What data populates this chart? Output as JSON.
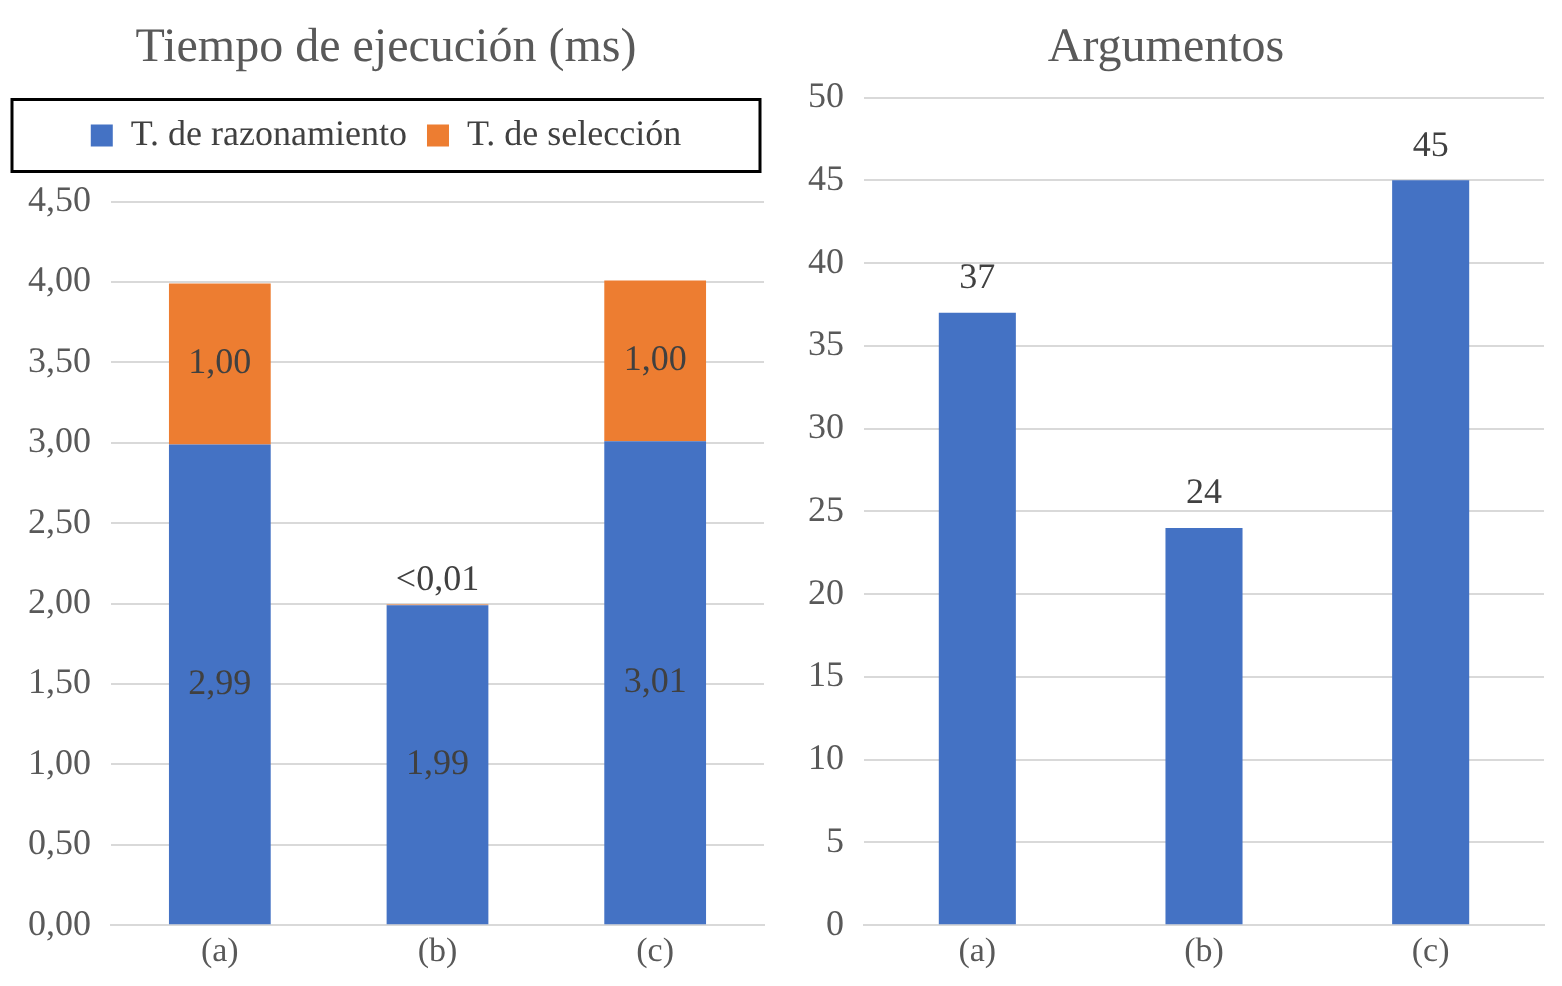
{
  "chart_data": [
    {
      "type": "bar",
      "title": "Tiempo de ejecución (ms)",
      "categories": [
        "(a)",
        "(b)",
        "(c)"
      ],
      "stacked": true,
      "legend": "top",
      "grid": "y",
      "ylim": [
        0,
        4.5
      ],
      "yticks": [
        {
          "value": 0,
          "label": "0,00"
        },
        {
          "value": 0.5,
          "label": "0,50"
        },
        {
          "value": 1,
          "label": "1,00"
        },
        {
          "value": 1.5,
          "label": "1,50"
        },
        {
          "value": 2,
          "label": "2,00"
        },
        {
          "value": 2.5,
          "label": "2,50"
        },
        {
          "value": 3,
          "label": "3,00"
        },
        {
          "value": 3.5,
          "label": "3,50"
        },
        {
          "value": 4,
          "label": "4,00"
        },
        {
          "value": 4.5,
          "label": "4,50"
        }
      ],
      "series": [
        {
          "name": "T. de razonamiento",
          "color": "#4472c4",
          "values": [
            2.99,
            1.99,
            3.01
          ],
          "value_labels": [
            "2,99",
            "1,99",
            "3,01"
          ]
        },
        {
          "name": "T. de selección",
          "color": "#ed7d31",
          "values": [
            1.0,
            0.005,
            1.0
          ],
          "value_labels": [
            "1,00",
            "<0,01",
            "1,00"
          ]
        }
      ]
    },
    {
      "type": "bar",
      "title": "Argumentos",
      "categories": [
        "(a)",
        "(b)",
        "(c)"
      ],
      "grid": "y",
      "ylim": [
        0,
        50
      ],
      "yticks": [
        0,
        5,
        10,
        15,
        20,
        25,
        30,
        35,
        40,
        45,
        50
      ],
      "data_labels": true,
      "series": [
        {
          "color": "#4472c4",
          "values": [
            37,
            24,
            45
          ]
        }
      ]
    }
  ]
}
